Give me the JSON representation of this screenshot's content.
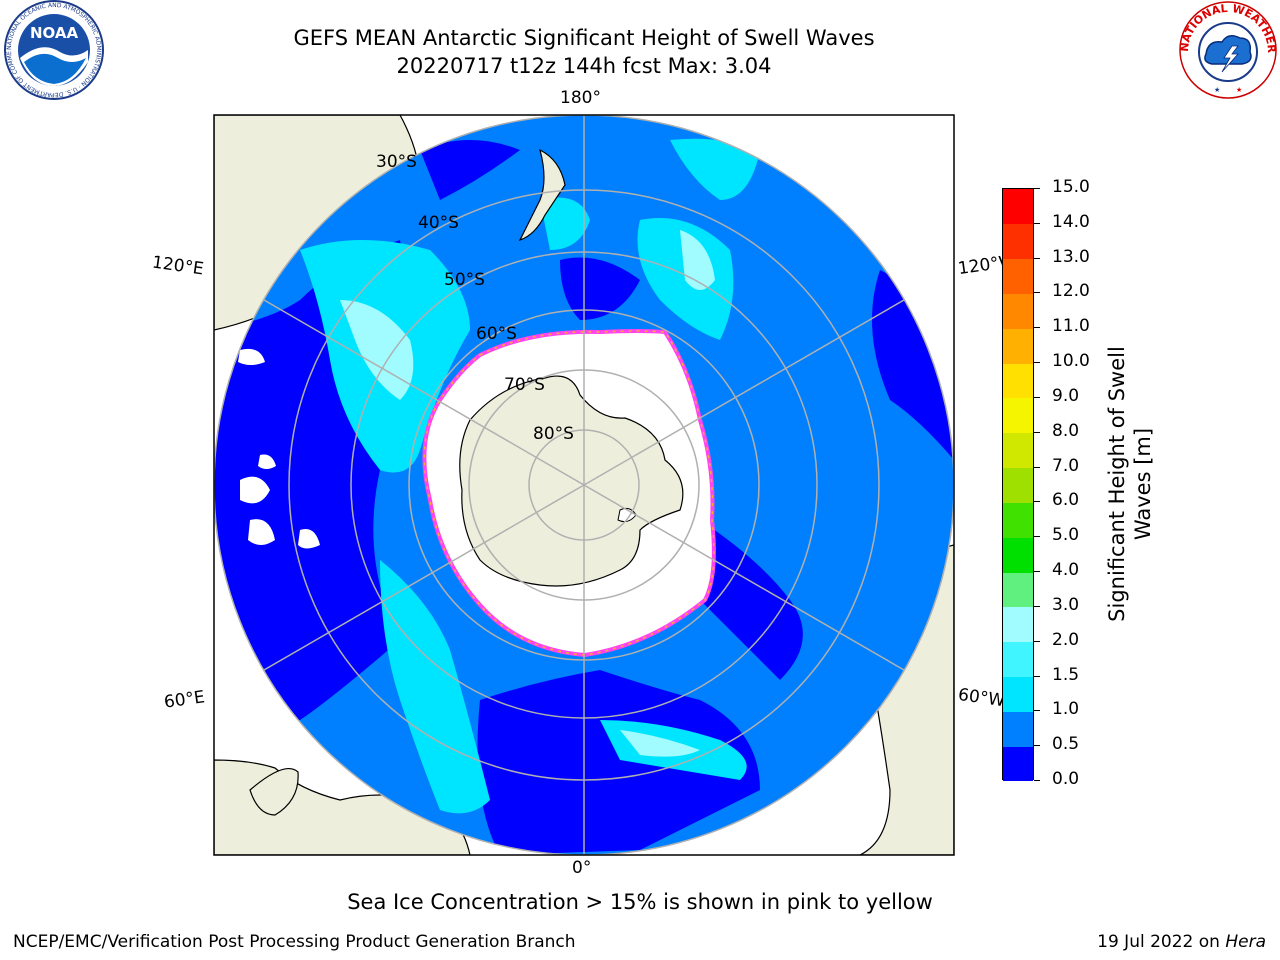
{
  "header": {
    "title_line1": "GEFS MEAN Antarctic Significant Height of Swell Waves",
    "title_line2": "20220717 t12z 144h fcst   Max: 3.04"
  },
  "logos": {
    "noaa_text": "NOAA",
    "noaa_ring_text": "NATIONAL OCEANIC AND ATMOSPHERIC ADMINISTRATION · U.S. DEPARTMENT OF COMMERCE",
    "nws_ring_text": "NATIONAL WEATHER SERVICE"
  },
  "map": {
    "projection": "south-polar-stereographic",
    "longitude_labels": {
      "top": "180°",
      "bottom": "0°",
      "upper_left": "120°E",
      "upper_right": "120°W",
      "lower_left": "60°E",
      "lower_right": "60°W"
    },
    "latitude_labels": [
      "30°S",
      "40°S",
      "50°S",
      "60°S",
      "70°S",
      "80°S"
    ],
    "colors": {
      "land": "#eeeedd",
      "ice_free_ocean": "#ffffff",
      "gridline": "#b0b0b0",
      "ice_edge": "#ff44ee"
    }
  },
  "colorbar": {
    "title": "Significant Height of Swell Waves [m]",
    "range": [
      0.0,
      15.0
    ],
    "ticks": [
      "0.0",
      "0.5",
      "1.0",
      "1.5",
      "2.0",
      "3.0",
      "4.0",
      "5.0",
      "6.0",
      "7.0",
      "8.0",
      "9.0",
      "10.0",
      "11.0",
      "12.0",
      "13.0",
      "14.0",
      "15.0"
    ],
    "colors": [
      "#0000ff",
      "#0080ff",
      "#00e5ff",
      "#40f5ff",
      "#a0fcff",
      "#60f080",
      "#00e000",
      "#40e000",
      "#a0e000",
      "#d0e800",
      "#f5f500",
      "#ffe000",
      "#ffb000",
      "#ff8800",
      "#ff6000",
      "#ff3000",
      "#ff0000"
    ]
  },
  "note": "Sea Ice Concentration > 15% is shown in pink to yellow",
  "footer": {
    "left": "NCEP/EMC/Verification Post Processing Product Generation Branch",
    "right_prefix": "19 Jul 2022 on ",
    "right_host": "Hera"
  }
}
